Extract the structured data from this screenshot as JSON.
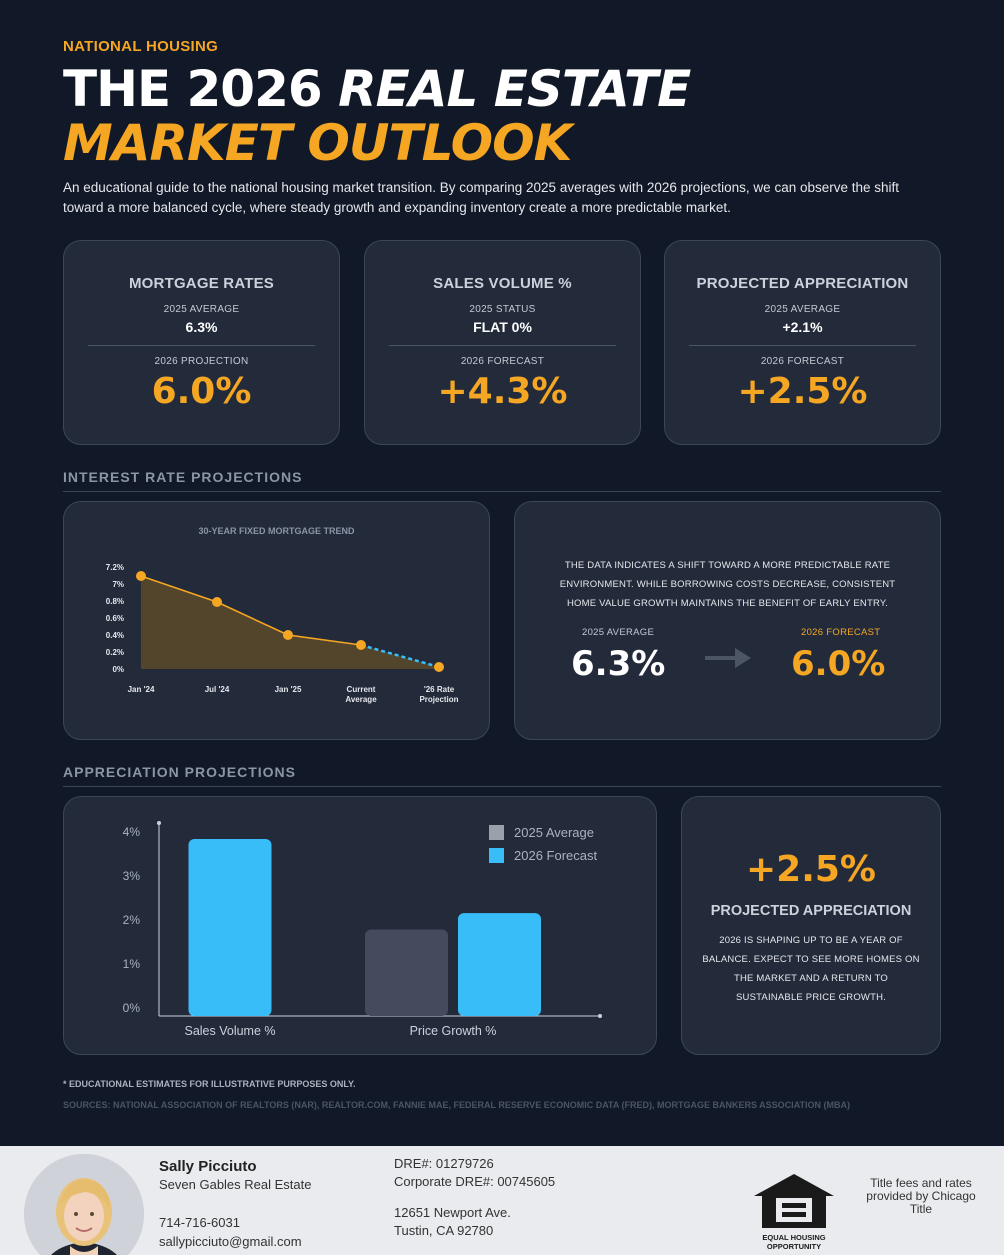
{
  "header": {
    "eyebrow": "NATIONAL HOUSING",
    "title_line1_a": "THE 2026",
    "title_line1_b": "REAL ESTATE",
    "title_line2": "MARKET OUTLOOK",
    "intro": "An educational guide to the national housing market transition. By comparing 2025 averages with 2026 projections, we can observe the shift toward a more balanced cycle, where steady growth and expanding inventory create a more predictable market."
  },
  "stats": [
    {
      "heading": "MORTGAGE RATES",
      "sub1": "2025 AVERAGE",
      "value1": "6.3%",
      "sub2": "2026 PROJECTION",
      "value2": "6.0%"
    },
    {
      "heading": "SALES VOLUME %",
      "sub1": "2025 STATUS",
      "value1": "FLAT 0%",
      "sub2": "2026 FORECAST",
      "value2": "+4.3%"
    },
    {
      "heading": "PROJECTED APPRECIATION",
      "sub1": "2025 AVERAGE",
      "value1": "+2.1%",
      "sub2": "2026 FORECAST",
      "value2": "+2.5%"
    }
  ],
  "sections": {
    "interest": "INTEREST RATE PROJECTIONS",
    "appreciation": "APPRECIATION PROJECTIONS"
  },
  "rate_panel": {
    "text": "THE DATA INDICATES A SHIFT TOWARD A MORE PREDICTABLE RATE ENVIRONMENT. WHILE BORROWING COSTS DECREASE, CONSISTENT HOME VALUE GROWTH MAINTAINS THE BENEFIT OF EARLY ENTRY.",
    "label_2025": "2025 AVERAGE",
    "value_2025": "6.3%",
    "label_2026": "2026 FORECAST",
    "value_2026": "6.0%"
  },
  "appreciation_panel": {
    "value": "+2.5%",
    "heading": "PROJECTED APPRECIATION",
    "text": "2026 IS SHAPING UP TO BE A YEAR OF BALANCE. EXPECT TO SEE MORE HOMES ON THE MARKET AND A RETURN TO SUSTAINABLE PRICE GROWTH."
  },
  "chart_data": [
    {
      "type": "area",
      "title": "30-YEAR FIXED MORTGAGE TREND",
      "y_ticks": [
        "7.2%",
        "7%",
        "0.8%",
        "0.6%",
        "0.4%",
        "0.2%",
        "0%"
      ],
      "categories": [
        "Jan '24",
        "Jul '24",
        "Jan '25",
        "Current Average",
        "'26 Rate Projection"
      ],
      "values": [
        7.2,
        7.0,
        6.6,
        6.4,
        6.0
      ],
      "projected_from_index": 3,
      "colors": {
        "line": "#f5a623",
        "area": "#5c4a2a",
        "projection": "#38bdf8"
      }
    },
    {
      "type": "bar",
      "categories": [
        "Sales Volume %",
        "Price Growth %"
      ],
      "series": [
        {
          "name": "2025 Average",
          "values": [
            0,
            2.1
          ],
          "color": "#434b5c"
        },
        {
          "name": "2026 Forecast",
          "values": [
            4.3,
            2.5
          ],
          "color": "#38bdf8"
        }
      ],
      "y_ticks": [
        "0%",
        "1%",
        "2%",
        "3%",
        "4%"
      ],
      "ylim": [
        0,
        4.3
      ],
      "legend": "top-right"
    }
  ],
  "notes": {
    "disclaimer": "* EDUCATIONAL ESTIMATES FOR ILLUSTRATIVE PURPOSES ONLY.",
    "sources": "SOURCES: NATIONAL ASSOCIATION OF REALTORS (NAR), REALTOR.COM, FANNIE MAE, FEDERAL RESERVE ECONOMIC DATA (FRED), MORTGAGE BANKERS ASSOCIATION (MBA)"
  },
  "footer": {
    "name": "Sally Picciuto",
    "company": "Seven Gables Real Estate",
    "phone": "714-716-6031",
    "email": "sallypicciuto@gmail.com",
    "dre": "DRE#: 01279726",
    "corp_dre": "Corporate DRE#: 00745605",
    "address1": "12651 Newport Ave.",
    "address2": "Tustin, CA 92780",
    "eho_line1": "EQUAL HOUSING",
    "eho_line2": "OPPORTUNITY",
    "title_note": "Title fees and rates provided by Chicago Title"
  }
}
